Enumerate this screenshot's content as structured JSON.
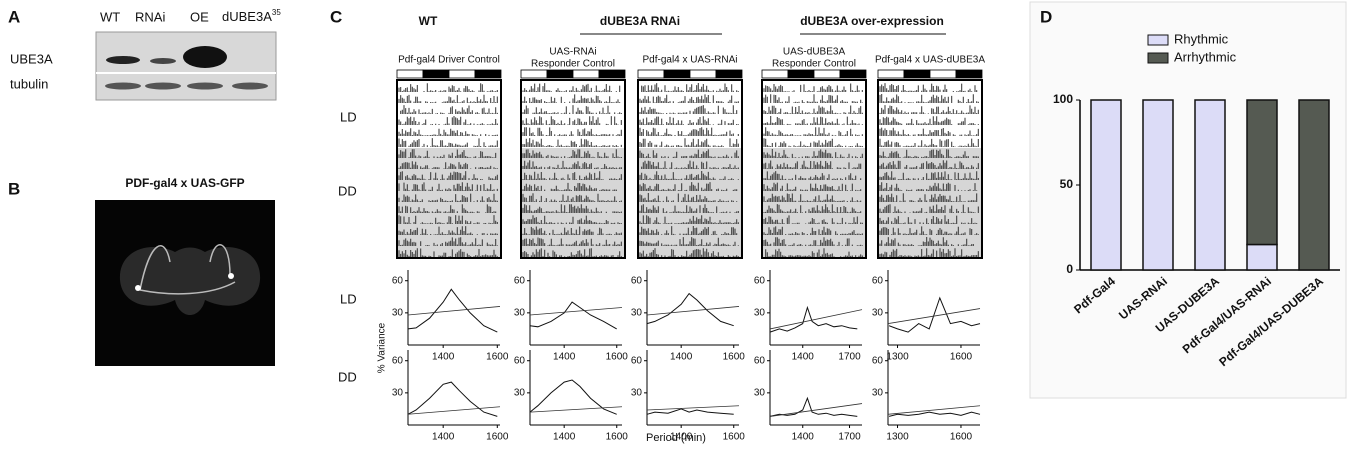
{
  "figure": {
    "panel_a": {
      "label": "A",
      "lanes": [
        "WT",
        "RNAi",
        "OE",
        "dUBE3A"
      ],
      "superscript": "35",
      "rows": [
        "UBE3A",
        "tubulin"
      ]
    },
    "panel_b": {
      "label": "B",
      "title": "PDF-gal4 x UAS-GFP"
    },
    "panel_c": {
      "label": "C",
      "groups": [
        "WT",
        "dUBE3A RNAi",
        "dUBE3A over-expression"
      ],
      "columns": [
        [
          "Pdf-gal4 Driver Control"
        ],
        [
          "UAS-RNAi",
          "Responder Control"
        ],
        [
          "Pdf-gal4 x UAS-RNAi"
        ],
        [
          "UAS-dUBE3A",
          "Responder Control"
        ],
        [
          "Pdf-gal4 x UAS-dUBE3A"
        ]
      ],
      "rows": [
        "LD",
        "DD"
      ],
      "ylabel": "% Variance",
      "xlabel": "Period (min)",
      "periodograms": [
        {
          "xlim": [
            1270,
            1610
          ],
          "xticks": [
            1400,
            1600
          ],
          "ylim": [
            0,
            70
          ],
          "yticks": [
            30,
            60
          ],
          "x": [
            1270,
            1300,
            1350,
            1400,
            1430,
            1460,
            1500,
            1550,
            1600
          ],
          "LD": [
            15,
            16,
            25,
            40,
            52,
            42,
            30,
            18,
            12
          ],
          "DD": [
            10,
            14,
            25,
            38,
            40,
            32,
            22,
            12,
            8
          ],
          "LD_threshold": [
            28,
            36
          ],
          "DD_threshold": [
            10,
            17
          ]
        },
        {
          "xlim": [
            1270,
            1620
          ],
          "xticks": [
            1400,
            1600
          ],
          "ylim": [
            0,
            70
          ],
          "yticks": [
            30,
            60
          ],
          "x": [
            1270,
            1300,
            1350,
            1400,
            1430,
            1460,
            1500,
            1550,
            1600
          ],
          "LD": [
            18,
            17,
            22,
            30,
            40,
            35,
            28,
            22,
            15
          ],
          "DD": [
            12,
            18,
            30,
            40,
            42,
            36,
            25,
            15,
            10
          ],
          "LD_threshold": [
            28,
            35
          ],
          "DD_threshold": [
            12,
            17
          ]
        },
        {
          "xlim": [
            1270,
            1620
          ],
          "xticks": [
            1400,
            1600
          ],
          "ylim": [
            0,
            70
          ],
          "yticks": [
            30,
            60
          ],
          "x": [
            1270,
            1300,
            1350,
            1400,
            1430,
            1460,
            1500,
            1550,
            1600
          ],
          "LD": [
            20,
            22,
            28,
            38,
            48,
            42,
            32,
            22,
            18
          ],
          "DD": [
            10,
            12,
            11,
            15,
            12,
            14,
            12,
            11,
            10
          ],
          "LD_threshold": [
            28,
            36
          ],
          "DD_threshold": [
            14,
            18
          ]
        },
        {
          "xlim": [
            1190,
            1780
          ],
          "xticks": [
            1400,
            1700
          ],
          "ylim": [
            0,
            70
          ],
          "yticks": [
            30,
            60
          ],
          "x": [
            1190,
            1250,
            1300,
            1350,
            1400,
            1430,
            1460,
            1500,
            1550,
            1600,
            1650,
            1700,
            1750
          ],
          "LD": [
            12,
            15,
            13,
            16,
            20,
            35,
            22,
            18,
            20,
            17,
            18,
            16,
            15
          ],
          "DD": [
            8,
            10,
            9,
            10,
            14,
            25,
            12,
            10,
            11,
            9,
            10,
            9,
            8
          ],
          "LD_threshold": [
            15,
            33
          ],
          "DD_threshold": [
            8,
            20
          ]
        },
        {
          "xlim": [
            1255,
            1690
          ],
          "xticks": [
            1300,
            1600
          ],
          "ylim": [
            0,
            70
          ],
          "yticks": [
            30,
            60
          ],
          "x": [
            1260,
            1300,
            1350,
            1400,
            1450,
            1500,
            1550,
            1600,
            1650,
            1690
          ],
          "LD": [
            18,
            15,
            12,
            20,
            15,
            44,
            20,
            22,
            18,
            20
          ],
          "DD": [
            8,
            10,
            9,
            10,
            12,
            10,
            11,
            9,
            12,
            10
          ],
          "LD_threshold": [
            20,
            34
          ],
          "DD_threshold": [
            10,
            18
          ]
        }
      ]
    },
    "panel_d": {
      "label": "D"
    }
  },
  "chart_data": {
    "type": "stacked-bar",
    "categories": [
      "Pdf-Gal4",
      "UAS-RNAi",
      "UAS-DUBE3A",
      "Pdf-Gal4/UAS-RNAi",
      "Pdf-Gal4/UAS-DUBE3A"
    ],
    "series": [
      {
        "name": "Rhythmic",
        "color": "#dcdcf7",
        "values": [
          100,
          100,
          100,
          15,
          0
        ]
      },
      {
        "name": "Arrhythmic",
        "color": "#555a52",
        "values": [
          0,
          0,
          0,
          85,
          100
        ]
      }
    ],
    "ylim": [
      0,
      100
    ],
    "yticks": [
      0,
      50,
      100
    ],
    "legend": "top"
  }
}
